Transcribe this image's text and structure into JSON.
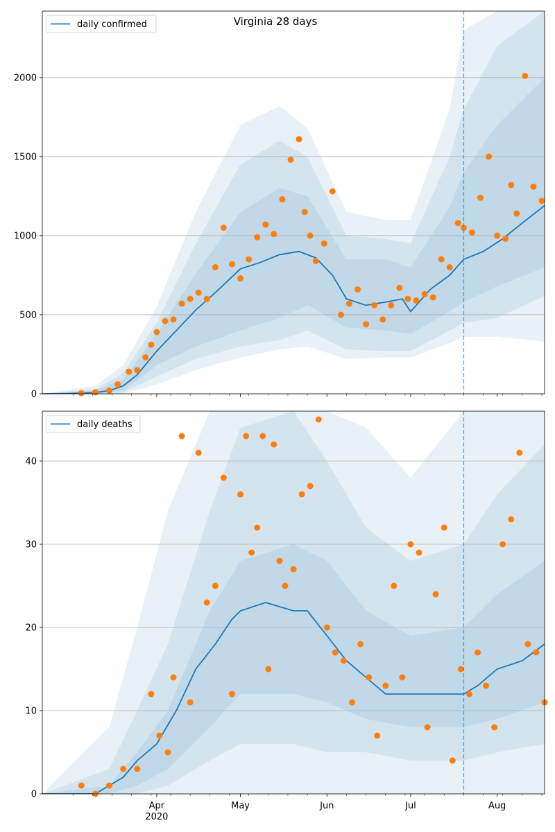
{
  "chart_data": [
    {
      "type": "line",
      "title": "Virginia 28 days",
      "legend": {
        "label": "daily confirmed",
        "placement": "top-left"
      },
      "x_range": [
        "2020-02-20",
        "2020-08-18"
      ],
      "x_ticks": [
        {
          "date": "2020-04-01",
          "label": "Apr"
        },
        {
          "date": "2020-05-01",
          "label": "May"
        },
        {
          "date": "2020-06-01",
          "label": "Jun"
        },
        {
          "date": "2020-07-01",
          "label": "Jul"
        },
        {
          "date": "2020-08-01",
          "label": "Aug"
        }
      ],
      "year_label": "2020",
      "ylim": [
        0,
        2420
      ],
      "y_ticks": [
        0,
        500,
        1000,
        1500,
        2000
      ],
      "grid": "horizontal",
      "forecast_start": "2020-07-20",
      "colors": {
        "line": "#1f77b4",
        "points": "#ff7f0e",
        "band": "#1f77b4",
        "vline": "#1f77b4"
      },
      "line": {
        "x": [
          "2020-02-20",
          "2020-03-01",
          "2020-03-10",
          "2020-03-15",
          "2020-03-20",
          "2020-03-25",
          "2020-04-01",
          "2020-04-08",
          "2020-04-15",
          "2020-04-22",
          "2020-05-01",
          "2020-05-08",
          "2020-05-15",
          "2020-05-22",
          "2020-05-28",
          "2020-06-03",
          "2020-06-08",
          "2020-06-15",
          "2020-06-22",
          "2020-06-28",
          "2020-07-01",
          "2020-07-08",
          "2020-07-15",
          "2020-07-20",
          "2020-07-27",
          "2020-08-03",
          "2020-08-10",
          "2020-08-18"
        ],
        "y": [
          0,
          2,
          8,
          20,
          50,
          120,
          270,
          400,
          530,
          640,
          790,
          830,
          880,
          900,
          860,
          750,
          600,
          560,
          580,
          600,
          520,
          660,
          750,
          850,
          900,
          980,
          1080,
          1190
        ]
      },
      "bands": [
        {
          "name": "",
          "x": [
            "2020-02-20",
            "2020-03-10",
            "2020-03-20",
            "2020-04-01",
            "2020-04-15",
            "2020-05-01",
            "2020-05-15",
            "2020-05-25",
            "2020-06-08",
            "2020-06-22",
            "2020-07-01",
            "2020-07-15",
            "2020-07-20",
            "2020-08-01",
            "2020-08-18"
          ],
          "lo": [
            0,
            0,
            20,
            180,
            300,
            400,
            480,
            560,
            420,
            400,
            380,
            520,
            580,
            680,
            800
          ],
          "hi": [
            0,
            20,
            90,
            380,
            760,
            1150,
            1300,
            1250,
            850,
            850,
            800,
            1180,
            1400,
            1700,
            2000
          ]
        },
        {
          "name": "",
          "x": [
            "2020-02-20",
            "2020-03-10",
            "2020-03-20",
            "2020-04-01",
            "2020-04-15",
            "2020-05-01",
            "2020-05-15",
            "2020-05-25",
            "2020-06-08",
            "2020-06-22",
            "2020-07-01",
            "2020-07-15",
            "2020-07-20",
            "2020-08-01",
            "2020-08-18"
          ],
          "lo": [
            0,
            0,
            10,
            110,
            220,
            300,
            340,
            400,
            280,
            270,
            270,
            400,
            450,
            480,
            620
          ],
          "hi": [
            0,
            30,
            130,
            450,
            950,
            1450,
            1600,
            1500,
            1000,
            980,
            950,
            1500,
            1800,
            2200,
            2420
          ]
        },
        {
          "name": "",
          "x": [
            "2020-02-20",
            "2020-03-10",
            "2020-03-20",
            "2020-04-01",
            "2020-04-15",
            "2020-05-01",
            "2020-05-15",
            "2020-05-25",
            "2020-06-08",
            "2020-06-22",
            "2020-07-01",
            "2020-07-15",
            "2020-07-20",
            "2020-08-01",
            "2020-08-18"
          ],
          "lo": [
            0,
            0,
            0,
            60,
            150,
            230,
            280,
            300,
            220,
            230,
            230,
            320,
            360,
            360,
            330
          ],
          "hi": [
            0,
            50,
            180,
            550,
            1150,
            1700,
            1820,
            1680,
            1150,
            1100,
            1100,
            1800,
            2300,
            2420,
            2420
          ]
        }
      ],
      "points": {
        "x": [
          "2020-03-05",
          "2020-03-10",
          "2020-03-15",
          "2020-03-18",
          "2020-03-22",
          "2020-03-25",
          "2020-03-28",
          "2020-03-30",
          "2020-04-01",
          "2020-04-04",
          "2020-04-07",
          "2020-04-10",
          "2020-04-13",
          "2020-04-16",
          "2020-04-19",
          "2020-04-22",
          "2020-04-25",
          "2020-04-28",
          "2020-05-01",
          "2020-05-04",
          "2020-05-07",
          "2020-05-10",
          "2020-05-13",
          "2020-05-16",
          "2020-05-19",
          "2020-05-22",
          "2020-05-24",
          "2020-05-26",
          "2020-05-28",
          "2020-05-31",
          "2020-06-03",
          "2020-06-06",
          "2020-06-09",
          "2020-06-12",
          "2020-06-15",
          "2020-06-18",
          "2020-06-21",
          "2020-06-24",
          "2020-06-27",
          "2020-06-30",
          "2020-07-03",
          "2020-07-06",
          "2020-07-09",
          "2020-07-12",
          "2020-07-15",
          "2020-07-18",
          "2020-07-20",
          "2020-07-23",
          "2020-07-26",
          "2020-07-29",
          "2020-08-01",
          "2020-08-04",
          "2020-08-06",
          "2020-08-08",
          "2020-08-11",
          "2020-08-14",
          "2020-08-17"
        ],
        "y": [
          5,
          10,
          20,
          60,
          140,
          150,
          230,
          310,
          390,
          460,
          470,
          570,
          600,
          640,
          600,
          800,
          1050,
          820,
          730,
          850,
          990,
          1070,
          1010,
          1230,
          1480,
          1610,
          1150,
          1000,
          840,
          950,
          1280,
          500,
          570,
          660,
          440,
          560,
          470,
          560,
          670,
          600,
          590,
          630,
          610,
          850,
          800,
          1080,
          1050,
          1020,
          1240,
          1500,
          1000,
          980,
          1320,
          1140,
          2010,
          1310,
          1220
        ]
      }
    },
    {
      "type": "line",
      "title": "",
      "legend": {
        "label": "daily deaths",
        "placement": "top-left"
      },
      "x_range": [
        "2020-02-20",
        "2020-08-18"
      ],
      "x_ticks": [
        {
          "date": "2020-04-01",
          "label": "Apr"
        },
        {
          "date": "2020-05-01",
          "label": "May"
        },
        {
          "date": "2020-06-01",
          "label": "Jun"
        },
        {
          "date": "2020-07-01",
          "label": "Jul"
        },
        {
          "date": "2020-08-01",
          "label": "Aug"
        }
      ],
      "year_label": "2020",
      "ylim": [
        0,
        46
      ],
      "y_ticks": [
        0,
        10,
        20,
        30,
        40
      ],
      "grid": "horizontal",
      "forecast_start": "2020-07-20",
      "colors": {
        "line": "#1f77b4",
        "points": "#ff7f0e",
        "band": "#1f77b4",
        "vline": "#1f77b4"
      },
      "line": {
        "x": [
          "2020-02-20",
          "2020-03-10",
          "2020-03-15",
          "2020-03-20",
          "2020-03-25",
          "2020-04-01",
          "2020-04-08",
          "2020-04-15",
          "2020-04-22",
          "2020-04-28",
          "2020-05-01",
          "2020-05-10",
          "2020-05-20",
          "2020-05-25",
          "2020-06-01",
          "2020-06-08",
          "2020-06-15",
          "2020-06-22",
          "2020-07-01",
          "2020-07-10",
          "2020-07-20",
          "2020-07-25",
          "2020-08-01",
          "2020-08-10",
          "2020-08-18"
        ],
        "y": [
          0,
          0,
          1,
          2,
          4,
          6,
          10,
          15,
          18,
          21,
          22,
          23,
          22,
          22,
          19,
          16,
          14,
          12,
          12,
          12,
          12,
          13,
          15,
          16,
          18
        ]
      },
      "bands": [
        {
          "name": "",
          "x": [
            "2020-02-20",
            "2020-03-15",
            "2020-03-25",
            "2020-04-05",
            "2020-04-20",
            "2020-05-01",
            "2020-05-20",
            "2020-06-01",
            "2020-06-15",
            "2020-07-01",
            "2020-07-20",
            "2020-08-01",
            "2020-08-18"
          ],
          "lo": [
            0,
            0,
            1,
            3,
            8,
            12,
            12,
            11,
            9,
            8,
            8,
            9,
            11
          ],
          "hi": [
            0,
            1,
            5,
            10,
            22,
            28,
            30,
            28,
            22,
            19,
            20,
            24,
            28
          ]
        },
        {
          "name": "",
          "x": [
            "2020-02-20",
            "2020-03-15",
            "2020-03-25",
            "2020-04-05",
            "2020-04-20",
            "2020-05-01",
            "2020-05-20",
            "2020-06-01",
            "2020-06-15",
            "2020-07-01",
            "2020-07-20",
            "2020-08-01",
            "2020-08-18"
          ],
          "lo": [
            0,
            0,
            0,
            1,
            4,
            6,
            6,
            5,
            5,
            4,
            4,
            5,
            6
          ],
          "hi": [
            0,
            3,
            10,
            18,
            34,
            44,
            46,
            40,
            32,
            28,
            30,
            36,
            42
          ]
        },
        {
          "name": "",
          "x": [
            "2020-02-20",
            "2020-03-15",
            "2020-03-25",
            "2020-04-05",
            "2020-04-20",
            "2020-05-01",
            "2020-05-20",
            "2020-06-01",
            "2020-06-15",
            "2020-07-01",
            "2020-07-20",
            "2020-08-01",
            "2020-08-18"
          ],
          "lo": [
            0,
            0,
            0,
            0,
            0,
            0,
            0,
            0,
            0,
            0,
            0,
            0,
            0
          ],
          "hi": [
            0,
            8,
            20,
            34,
            46,
            46,
            46,
            46,
            44,
            38,
            46,
            46,
            46
          ]
        }
      ],
      "points": {
        "x": [
          "2020-03-05",
          "2020-03-10",
          "2020-03-15",
          "2020-03-20",
          "2020-03-25",
          "2020-03-30",
          "2020-04-02",
          "2020-04-05",
          "2020-04-07",
          "2020-04-10",
          "2020-04-13",
          "2020-04-16",
          "2020-04-19",
          "2020-04-22",
          "2020-04-25",
          "2020-04-28",
          "2020-05-01",
          "2020-05-03",
          "2020-05-05",
          "2020-05-07",
          "2020-05-09",
          "2020-05-11",
          "2020-05-13",
          "2020-05-15",
          "2020-05-17",
          "2020-05-20",
          "2020-05-23",
          "2020-05-26",
          "2020-05-29",
          "2020-06-01",
          "2020-06-04",
          "2020-06-07",
          "2020-06-10",
          "2020-06-13",
          "2020-06-16",
          "2020-06-19",
          "2020-06-22",
          "2020-06-25",
          "2020-06-28",
          "2020-07-01",
          "2020-07-04",
          "2020-07-07",
          "2020-07-10",
          "2020-07-13",
          "2020-07-16",
          "2020-07-19",
          "2020-07-22",
          "2020-07-25",
          "2020-07-28",
          "2020-07-31",
          "2020-08-03",
          "2020-08-06",
          "2020-08-09",
          "2020-08-12",
          "2020-08-15",
          "2020-08-18"
        ],
        "y": [
          1,
          0,
          1,
          3,
          3,
          12,
          7,
          5,
          14,
          43,
          11,
          41,
          23,
          25,
          38,
          12,
          36,
          43,
          29,
          32,
          43,
          15,
          42,
          28,
          25,
          27,
          36,
          37,
          45,
          20,
          17,
          16,
          11,
          18,
          14,
          7,
          13,
          25,
          14,
          30,
          29,
          8,
          24,
          32,
          4,
          15,
          12,
          17,
          13,
          8,
          30,
          33,
          41,
          18,
          17,
          11
        ]
      }
    }
  ]
}
